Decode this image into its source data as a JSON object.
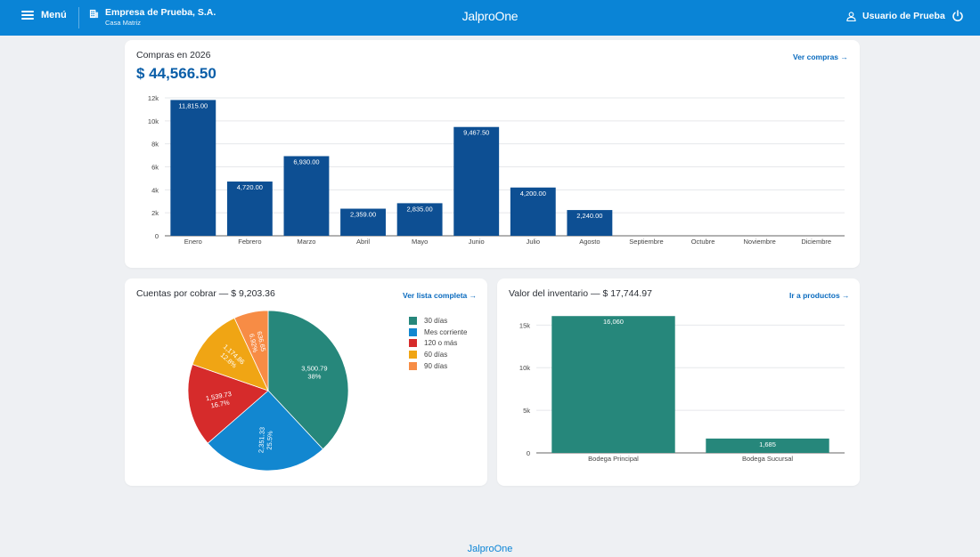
{
  "topbar": {
    "menu_label": "Menú",
    "company_name": "Empresa de Prueba, S.A.",
    "branch": "Casa Matriz",
    "logo": "JalproOne",
    "user_label": "Usuario de Prueba",
    "icons": [
      "menu-icon",
      "building-icon",
      "user-icon",
      "power-icon"
    ],
    "colors": {
      "bar": "#0a84d6"
    }
  },
  "purchases": {
    "title": "Compras en 2026",
    "total": "$ 44,566.50",
    "link": "Ver compras →"
  },
  "receivables": {
    "title": "Cuentas por cobrar — $ 9,203.36",
    "link": "Ver lista completa →"
  },
  "inventory": {
    "title": "Valor del inventario — $ 17,744.97",
    "link": "Ir a productos →"
  },
  "footer": {
    "logo": "JalproOne"
  },
  "chart_data": [
    {
      "type": "bar",
      "categories": [
        "Enero",
        "Febrero",
        "Marzo",
        "Abril",
        "Mayo",
        "Junio",
        "Julio",
        "Agosto",
        "Septiembre",
        "Octubre",
        "Noviembre",
        "Diciembre"
      ],
      "values": [
        11815,
        4720,
        6930,
        2359,
        2835,
        9467.5,
        4200,
        2240,
        null,
        null,
        null,
        null
      ],
      "data_labels": [
        "11,815.00",
        "4,720.00",
        "6,930.00",
        "2,359.00",
        "2,835.00",
        "9,467.50",
        "4,200.00",
        "2,240.00",
        "",
        "",
        "",
        ""
      ],
      "ylim": [
        0,
        12000
      ],
      "yticks": [
        0,
        2000,
        4000,
        6000,
        8000,
        10000,
        12000
      ],
      "ytick_labels": [
        "0",
        "2k",
        "4k",
        "6k",
        "8k",
        "10k",
        "12k"
      ],
      "grid": true,
      "color": "#0d4f93"
    },
    {
      "type": "pie",
      "labels": [
        "30 días",
        "Mes corriente",
        "120 o más",
        "60 días",
        "90 días"
      ],
      "values": [
        3500.79,
        2351.33,
        1539.73,
        1174.86,
        636.65
      ],
      "value_labels": [
        "3,500.79",
        "2,351.33",
        "1,539.73",
        "1,174.86",
        "636.65"
      ],
      "percent_labels": [
        "38%",
        "25.5%",
        "16.7%",
        "12.8%",
        "6.92%"
      ],
      "colors": [
        "#26877b",
        "#1287d0",
        "#d62b2b",
        "#f0a514",
        "#f78c45"
      ],
      "legend": "right"
    },
    {
      "type": "bar",
      "categories": [
        "Bodega Principal",
        "Bodega Sucursal"
      ],
      "values": [
        16060,
        1685
      ],
      "data_labels": [
        "16,060",
        "1,685"
      ],
      "ylim": [
        0,
        16500
      ],
      "yticks": [
        0,
        5000,
        10000,
        15000
      ],
      "ytick_labels": [
        "0",
        "5k",
        "10k",
        "15k"
      ],
      "grid": true,
      "color": "#26877b"
    }
  ]
}
